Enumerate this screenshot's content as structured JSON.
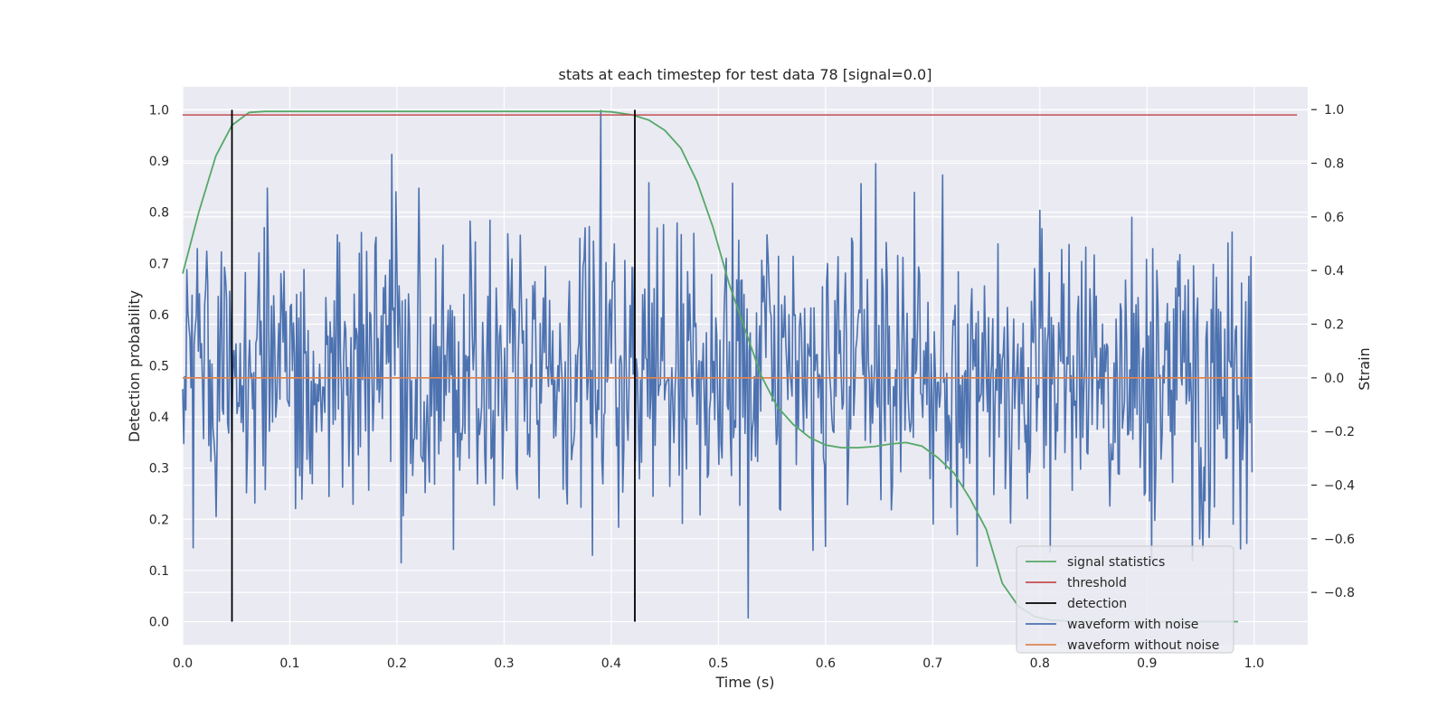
{
  "chart_data": {
    "type": "line",
    "title": "stats at each timestep for test data 78 [signal=0.0]",
    "xlabel": "Time (s)",
    "ylabel": "Detection probability",
    "y2label": "Strain",
    "xlim": [
      0.0,
      1.05
    ],
    "ylim": [
      -0.045,
      1.045
    ],
    "y2lim": [
      -0.995,
      1.085
    ],
    "x_ticks": [
      0.0,
      0.1,
      0.2,
      0.3,
      0.4,
      0.5,
      0.6,
      0.7,
      0.8,
      0.9,
      1.0
    ],
    "x_tick_labels": [
      "0.0",
      "0.1",
      "0.2",
      "0.3",
      "0.4",
      "0.5",
      "0.6",
      "0.7",
      "0.8",
      "0.9",
      "1.0"
    ],
    "y_ticks": [
      0.0,
      0.1,
      0.2,
      0.3,
      0.4,
      0.5,
      0.6,
      0.7,
      0.8,
      0.9,
      1.0
    ],
    "y_tick_labels": [
      "0.0",
      "0.1",
      "0.2",
      "0.3",
      "0.4",
      "0.5",
      "0.6",
      "0.7",
      "0.8",
      "0.9",
      "1.0"
    ],
    "y2_ticks": [
      -0.8,
      -0.6,
      -0.4,
      -0.2,
      0.0,
      0.2,
      0.4,
      0.6,
      0.8,
      1.0
    ],
    "y2_tick_labels": [
      "−0.8",
      "−0.6",
      "−0.4",
      "−0.2",
      "0.0",
      "0.2",
      "0.4",
      "0.6",
      "0.8",
      "1.0"
    ],
    "grid": true,
    "background": "#EAEAF2",
    "legend_position": "lower-right",
    "series": [
      {
        "name": "signal statistics",
        "axis": "left",
        "color": "#55A868",
        "x": [
          0.0,
          0.015,
          0.031,
          0.046,
          0.062,
          0.077,
          0.1,
          0.2,
          0.3,
          0.39,
          0.4,
          0.42,
          0.435,
          0.45,
          0.465,
          0.48,
          0.495,
          0.51,
          0.525,
          0.54,
          0.555,
          0.57,
          0.585,
          0.6,
          0.615,
          0.63,
          0.645,
          0.66,
          0.675,
          0.69,
          0.705,
          0.72,
          0.735,
          0.75,
          0.765,
          0.78,
          0.795,
          0.81,
          0.83,
          0.86,
          0.9,
          0.95,
          0.985
        ],
        "y": [
          0.68,
          0.8,
          0.91,
          0.97,
          0.995,
          0.997,
          0.997,
          0.997,
          0.997,
          0.997,
          0.996,
          0.99,
          0.98,
          0.96,
          0.925,
          0.86,
          0.77,
          0.66,
          0.57,
          0.48,
          0.42,
          0.385,
          0.36,
          0.345,
          0.34,
          0.34,
          0.342,
          0.347,
          0.35,
          0.343,
          0.32,
          0.29,
          0.24,
          0.18,
          0.075,
          0.03,
          0.01,
          0.003,
          0.001,
          0.0,
          0.0,
          0.0,
          0.0
        ]
      },
      {
        "name": "threshold",
        "axis": "left",
        "color": "#C44E52",
        "x": [
          0.0,
          1.04
        ],
        "y": [
          0.99,
          0.99
        ]
      },
      {
        "name": "detection",
        "axis": "left",
        "color": "#000000",
        "type": "vlines",
        "x": [
          0.046,
          0.422
        ],
        "y_range": [
          0.0,
          1.0
        ]
      },
      {
        "name": "waveform with noise",
        "axis": "right",
        "color": "#4C72B0",
        "x_range": [
          0.0,
          0.998
        ],
        "samples": 1024,
        "value_range": [
          -0.9,
          1.0
        ],
        "max": {
          "x": 0.39,
          "y": 0.997
        },
        "min": {
          "x": 0.528,
          "y": -0.895
        }
      },
      {
        "name": "waveform without noise",
        "axis": "right",
        "color": "#DD8452",
        "x": [
          0.0,
          0.998
        ],
        "y": [
          0.0,
          0.0
        ]
      }
    ]
  }
}
